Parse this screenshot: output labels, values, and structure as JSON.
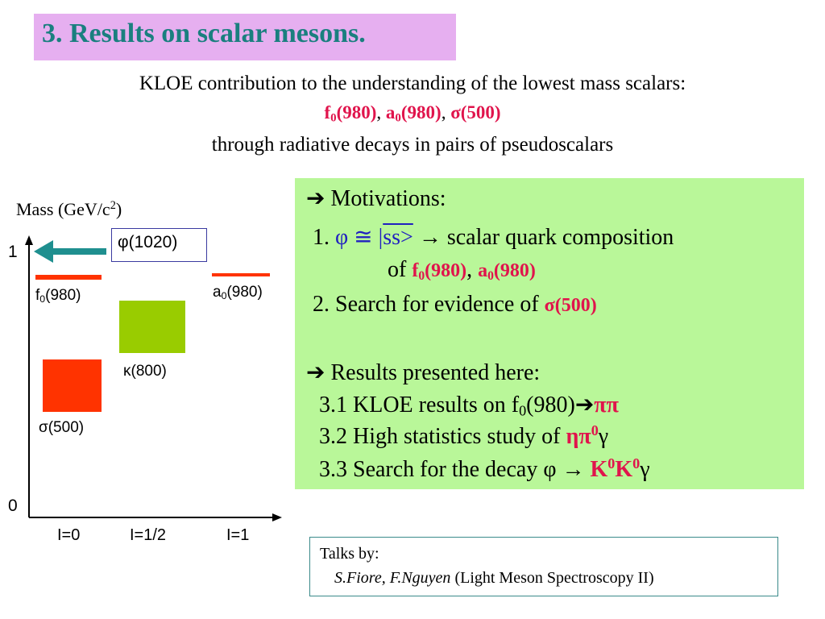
{
  "title": "3. Results on scalar mesons.",
  "intro": {
    "line1": "KLOE contribution to the understanding of the lowest mass scalars:",
    "scalars": [
      {
        "name": "f",
        "sub": "0",
        "mass": "(980)"
      },
      {
        "name": "a",
        "sub": "0",
        "mass": "(980)"
      },
      {
        "name": "σ",
        "mass": "(500)"
      }
    ],
    "separator": ",",
    "line3": "through radiative decays in pairs of pseudoscalars"
  },
  "diagram": {
    "y_axis_label": "Mass (GeV/c",
    "y_axis_label_sup": "2",
    "y_axis_label_end": ")",
    "y_ticks": [
      "1",
      "0"
    ],
    "x_ticks": [
      "I=0",
      "I=1/2",
      "I=1"
    ],
    "phi_label": "φ(1020)",
    "states": {
      "f0": {
        "name": "f",
        "sub": "0",
        "mass": "(980)"
      },
      "a0": {
        "name": "a",
        "sub": "0",
        "mass": "(980)"
      },
      "kappa": "κ(800)",
      "sigma": "σ(500)"
    },
    "colors": {
      "axis": "#000000",
      "arrow": "#1f8f8f",
      "f0_a0": "#ff3300",
      "sigma": "#ff3300",
      "kappa": "#99cc00"
    }
  },
  "motivations": {
    "header_arrow": "➔",
    "header": "Motivations:",
    "item1_num": "1.",
    "item1_phi": "φ ≅",
    "item1_ket": "ss>",
    "item1_arrow": "→",
    "item1_text": "scalar quark composition",
    "item1_line2_pre": "of",
    "item1_f0": "f",
    "item1_f0_sub": "0",
    "item1_f0_mass": "(980)",
    "item1_sep": ",",
    "item1_a0": "a",
    "item1_a0_sub": "0",
    "item1_a0_mass": "(980)",
    "item2_text": "2. Search for evidence of",
    "item2_sigma": "σ(500)",
    "results_arrow": "➔",
    "results_header": "Results presented here:",
    "r1_text": "3.1 KLOE results on f",
    "r1_sub": "0",
    "r1_mid": "(980)",
    "r1_arrow": "➔",
    "r1_pp": "ππ",
    "r2_text": "3.2 High statistics study of",
    "r2_eta_pi": "ηπ",
    "r2_sup": "0",
    "r2_gamma": "γ",
    "r3_text": "3.3 Search for the decay φ →",
    "r3_k1": "K",
    "r3_k1_sup": "0",
    "r3_k2": "K",
    "r3_k2_sup": "0",
    "r3_gamma": "γ"
  },
  "talks": {
    "label": "Talks by:",
    "names": "S.Fiore, F.Nguyen",
    "conference": "(Light Meson Spectroscopy II)"
  }
}
